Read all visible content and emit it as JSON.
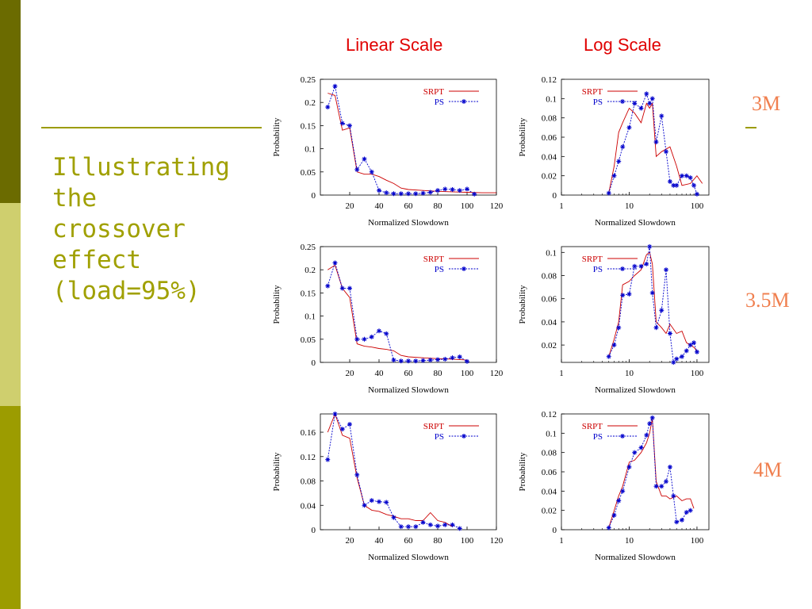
{
  "slide": {
    "title": "Illustrating the crossover effect (load=95%)",
    "col_headers": [
      "Linear Scale",
      "Log Scale"
    ],
    "row_labels": [
      "3M",
      "3.5M",
      "4M"
    ],
    "colors": {
      "sidebar": [
        "#6b6b00",
        "#cfcf6e",
        "#9c9c00"
      ],
      "title": "#a0a000",
      "header": "#e00000",
      "row_label": "#f08050",
      "srpt": "#cc0000",
      "ps": "#0000cc"
    }
  },
  "chart_data": [
    {
      "id": "lin-3m",
      "type": "line",
      "xscale": "linear",
      "xlabel": "Normalized Slowdown",
      "ylabel": "Probability",
      "xlim": [
        0,
        120
      ],
      "ylim": [
        0,
        0.25
      ],
      "xticks": [
        20,
        40,
        60,
        80,
        100,
        120
      ],
      "xtick_labels": [
        "20",
        "40",
        "60",
        "80",
        "100",
        "120"
      ],
      "yticks": [
        0,
        0.05,
        0.1,
        0.15,
        0.2,
        0.25
      ],
      "ytick_labels": [
        "0",
        "0.05",
        "0.1",
        "0.15",
        "0.2",
        "0.25"
      ],
      "legend": "top-right",
      "series": [
        {
          "name": "SRPT",
          "style": "line",
          "x": [
            5,
            10,
            15,
            20,
            25,
            30,
            35,
            40,
            45,
            50,
            55,
            60,
            70,
            80,
            90,
            100,
            110,
            120
          ],
          "y": [
            0.22,
            0.215,
            0.14,
            0.145,
            0.05,
            0.045,
            0.045,
            0.04,
            0.032,
            0.025,
            0.015,
            0.012,
            0.01,
            0.008,
            0.007,
            0.006,
            0.005,
            0.005
          ]
        },
        {
          "name": "PS",
          "style": "line-marker",
          "x": [
            5,
            10,
            15,
            20,
            25,
            30,
            35,
            40,
            45,
            50,
            55,
            60,
            65,
            70,
            75,
            80,
            85,
            90,
            95,
            100,
            105
          ],
          "y": [
            0.19,
            0.235,
            0.155,
            0.15,
            0.055,
            0.078,
            0.05,
            0.01,
            0.005,
            0.003,
            0.003,
            0.003,
            0.003,
            0.004,
            0.006,
            0.01,
            0.013,
            0.012,
            0.01,
            0.013,
            0.002
          ]
        }
      ]
    },
    {
      "id": "log-3m",
      "type": "line",
      "xscale": "log",
      "xlabel": "Normalized Slowdown",
      "ylabel": "Probability",
      "xlim": [
        1,
        150
      ],
      "ylim": [
        0,
        0.12
      ],
      "xticks": [
        1,
        10,
        100
      ],
      "xtick_labels": [
        "1",
        "10",
        "100"
      ],
      "yticks": [
        0,
        0.02,
        0.04,
        0.06,
        0.08,
        0.1,
        0.12
      ],
      "ytick_labels": [
        "0",
        "0.02",
        "0.04",
        "0.06",
        "0.08",
        "0.1",
        "0.12"
      ],
      "legend": "top-left",
      "series": [
        {
          "name": "SRPT",
          "style": "line",
          "x": [
            5,
            6,
            7,
            8,
            10,
            12,
            15,
            18,
            20,
            22,
            25,
            30,
            40,
            50,
            60,
            80,
            100,
            120
          ],
          "y": [
            0.002,
            0.03,
            0.065,
            0.075,
            0.09,
            0.085,
            0.075,
            0.095,
            0.09,
            0.095,
            0.04,
            0.045,
            0.05,
            0.03,
            0.01,
            0.012,
            0.02,
            0.012
          ]
        },
        {
          "name": "PS",
          "style": "line-marker",
          "x": [
            5,
            6,
            7,
            8,
            10,
            12,
            15,
            18,
            20,
            22,
            25,
            30,
            35,
            40,
            45,
            50,
            60,
            70,
            80,
            90,
            100
          ],
          "y": [
            0.002,
            0.02,
            0.035,
            0.05,
            0.07,
            0.095,
            0.09,
            0.105,
            0.095,
            0.1,
            0.055,
            0.082,
            0.045,
            0.014,
            0.01,
            0.01,
            0.02,
            0.02,
            0.018,
            0.01,
            0.001
          ]
        }
      ]
    },
    {
      "id": "lin-35m",
      "type": "line",
      "xscale": "linear",
      "xlabel": "Normalized Slowdown",
      "ylabel": "Probability",
      "xlim": [
        0,
        120
      ],
      "ylim": [
        0,
        0.25
      ],
      "xticks": [
        20,
        40,
        60,
        80,
        100,
        120
      ],
      "xtick_labels": [
        "20",
        "40",
        "60",
        "80",
        "100",
        "120"
      ],
      "yticks": [
        0,
        0.05,
        0.1,
        0.15,
        0.2,
        0.25
      ],
      "ytick_labels": [
        "0",
        "0.05",
        "0.1",
        "0.15",
        "0.2",
        "0.25"
      ],
      "legend": "top-right",
      "series": [
        {
          "name": "SRPT",
          "style": "line",
          "x": [
            5,
            10,
            15,
            20,
            25,
            30,
            35,
            40,
            45,
            50,
            55,
            60,
            70,
            80,
            90,
            100
          ],
          "y": [
            0.2,
            0.21,
            0.16,
            0.14,
            0.04,
            0.035,
            0.033,
            0.03,
            0.028,
            0.025,
            0.015,
            0.012,
            0.01,
            0.008,
            0.007,
            0.005
          ]
        },
        {
          "name": "PS",
          "style": "line-marker",
          "x": [
            5,
            10,
            15,
            20,
            25,
            30,
            35,
            40,
            45,
            50,
            55,
            60,
            65,
            70,
            75,
            80,
            85,
            90,
            95,
            100
          ],
          "y": [
            0.165,
            0.215,
            0.16,
            0.16,
            0.05,
            0.05,
            0.055,
            0.068,
            0.062,
            0.005,
            0.003,
            0.003,
            0.003,
            0.004,
            0.005,
            0.006,
            0.007,
            0.01,
            0.012,
            0.002
          ]
        }
      ]
    },
    {
      "id": "log-35m",
      "type": "line",
      "xscale": "log",
      "xlabel": "Normalized Slowdown",
      "ylabel": "Probability",
      "xlim": [
        1,
        150
      ],
      "ylim": [
        0.005,
        0.105
      ],
      "xticks": [
        1,
        10,
        100
      ],
      "xtick_labels": [
        "1",
        "10",
        "100"
      ],
      "yticks": [
        0.02,
        0.04,
        0.06,
        0.08,
        0.1
      ],
      "ytick_labels": [
        "0.02",
        "0.04",
        "0.06",
        "0.08",
        "0.1"
      ],
      "legend": "top-left",
      "series": [
        {
          "name": "SRPT",
          "style": "line",
          "x": [
            5,
            6,
            7,
            8,
            10,
            12,
            15,
            18,
            20,
            22,
            25,
            30,
            35,
            40,
            50,
            60,
            70,
            80,
            90,
            100
          ],
          "y": [
            0.01,
            0.025,
            0.04,
            0.072,
            0.075,
            0.08,
            0.085,
            0.098,
            0.1,
            0.09,
            0.04,
            0.035,
            0.03,
            0.038,
            0.03,
            0.032,
            0.022,
            0.02,
            0.018,
            0.015
          ]
        },
        {
          "name": "PS",
          "style": "line-marker",
          "x": [
            5,
            6,
            7,
            8,
            10,
            12,
            15,
            18,
            20,
            22,
            25,
            30,
            35,
            40,
            45,
            50,
            60,
            70,
            80,
            90,
            100
          ],
          "y": [
            0.01,
            0.02,
            0.035,
            0.063,
            0.064,
            0.088,
            0.088,
            0.09,
            0.105,
            0.065,
            0.035,
            0.05,
            0.085,
            0.03,
            0.005,
            0.008,
            0.01,
            0.015,
            0.02,
            0.022,
            0.014
          ]
        }
      ]
    },
    {
      "id": "lin-4m",
      "type": "line",
      "xscale": "linear",
      "xlabel": "Normalized Slowdown",
      "ylabel": "Probability",
      "xlim": [
        0,
        120
      ],
      "ylim": [
        0,
        0.19
      ],
      "xticks": [
        20,
        40,
        60,
        80,
        100,
        120
      ],
      "xtick_labels": [
        "20",
        "40",
        "60",
        "80",
        "100",
        "120"
      ],
      "yticks": [
        0,
        0.04,
        0.08,
        0.12,
        0.16
      ],
      "ytick_labels": [
        "0",
        "0.04",
        "0.08",
        "0.12",
        "0.16"
      ],
      "legend": "top-right",
      "series": [
        {
          "name": "SRPT",
          "style": "line",
          "x": [
            5,
            10,
            15,
            20,
            25,
            30,
            35,
            40,
            45,
            50,
            55,
            60,
            65,
            70,
            75,
            80,
            85,
            90
          ],
          "y": [
            0.16,
            0.19,
            0.155,
            0.15,
            0.085,
            0.04,
            0.032,
            0.03,
            0.025,
            0.022,
            0.018,
            0.018,
            0.015,
            0.015,
            0.028,
            0.015,
            0.012,
            0.005
          ]
        },
        {
          "name": "PS",
          "style": "line-marker",
          "x": [
            5,
            10,
            15,
            20,
            25,
            30,
            35,
            40,
            45,
            50,
            55,
            60,
            65,
            70,
            75,
            80,
            85,
            90,
            95
          ],
          "y": [
            0.115,
            0.19,
            0.165,
            0.173,
            0.09,
            0.04,
            0.048,
            0.046,
            0.045,
            0.02,
            0.005,
            0.005,
            0.005,
            0.012,
            0.008,
            0.006,
            0.008,
            0.008,
            0.002
          ]
        }
      ]
    },
    {
      "id": "log-4m",
      "type": "line",
      "xscale": "log",
      "xlabel": "Normalized Slowdown",
      "ylabel": "Probability",
      "xlim": [
        1,
        150
      ],
      "ylim": [
        0,
        0.12
      ],
      "xticks": [
        1,
        10,
        100
      ],
      "xtick_labels": [
        "1",
        "10",
        "100"
      ],
      "yticks": [
        0,
        0.02,
        0.04,
        0.06,
        0.08,
        0.1,
        0.12
      ],
      "ytick_labels": [
        "0",
        "0.02",
        "0.04",
        "0.06",
        "0.08",
        "0.1",
        "0.12"
      ],
      "legend": "top-left",
      "series": [
        {
          "name": "SRPT",
          "style": "line",
          "x": [
            5,
            6,
            7,
            8,
            10,
            12,
            15,
            18,
            20,
            22,
            25,
            30,
            35,
            40,
            50,
            60,
            70,
            80,
            90
          ],
          "y": [
            0.002,
            0.02,
            0.035,
            0.045,
            0.07,
            0.072,
            0.08,
            0.09,
            0.1,
            0.115,
            0.05,
            0.035,
            0.035,
            0.032,
            0.035,
            0.03,
            0.032,
            0.032,
            0.022
          ]
        },
        {
          "name": "PS",
          "style": "line-marker",
          "x": [
            5,
            6,
            7,
            8,
            10,
            12,
            15,
            18,
            20,
            22,
            25,
            30,
            35,
            40,
            45,
            50,
            60,
            70,
            80
          ],
          "y": [
            0.002,
            0.015,
            0.03,
            0.04,
            0.065,
            0.08,
            0.085,
            0.098,
            0.11,
            0.116,
            0.045,
            0.045,
            0.05,
            0.065,
            0.035,
            0.008,
            0.01,
            0.018,
            0.02
          ]
        }
      ]
    }
  ]
}
